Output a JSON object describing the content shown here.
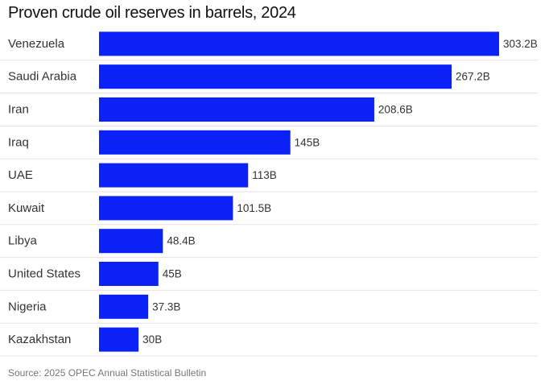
{
  "chart_data": {
    "type": "bar",
    "orientation": "horizontal",
    "title": "Proven crude oil reserves in barrels, 2024",
    "source": "Source: 2025 OPEC Annual Statistical Bulletin",
    "categories": [
      "Venezuela",
      "Saudi Arabia",
      "Iran",
      "Iraq",
      "UAE",
      "Kuwait",
      "Libya",
      "United States",
      "Nigeria",
      "Kazakhstan"
    ],
    "values": [
      303.2,
      267.2,
      208.6,
      145,
      113,
      101.5,
      48.4,
      45,
      37.3,
      30
    ],
    "value_labels": [
      "303.2B",
      "267.2B",
      "208.6B",
      "145B",
      "113B",
      "101.5B",
      "48.4B",
      "45B",
      "37.3B",
      "30B"
    ],
    "unit": "billion barrels",
    "xlim": [
      0,
      303.2
    ],
    "grid": false,
    "colors": {
      "bar": "#0a22f5",
      "separator": "#e3e3e3",
      "label": "#333333",
      "value_label": "#333333"
    }
  }
}
